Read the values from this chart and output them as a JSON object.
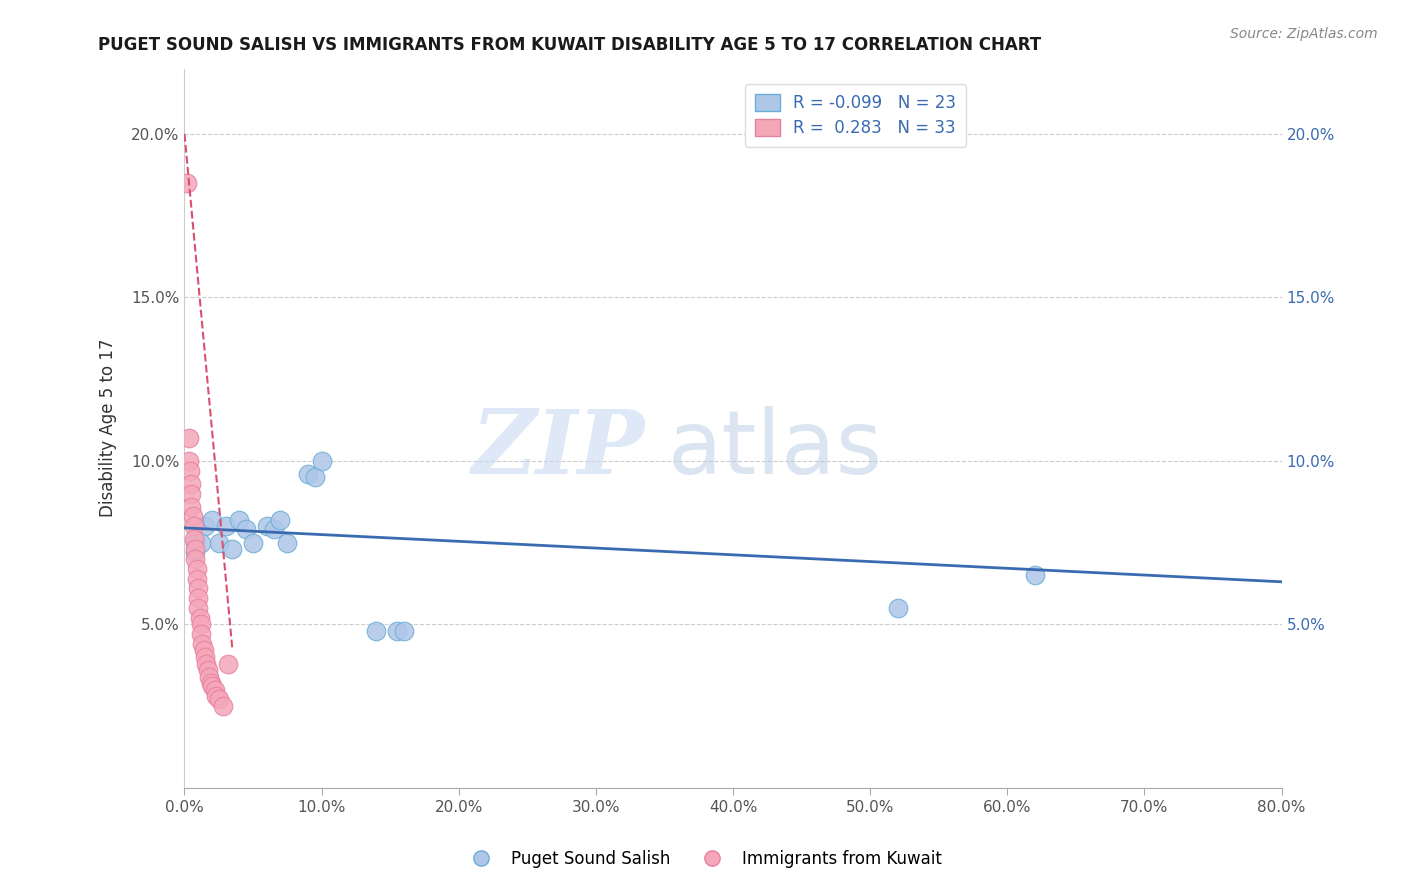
{
  "title": "PUGET SOUND SALISH VS IMMIGRANTS FROM KUWAIT DISABILITY AGE 5 TO 17 CORRELATION CHART",
  "source": "Source: ZipAtlas.com",
  "ylabel": "Disability Age 5 to 17",
  "xlim": [
    0.0,
    0.8
  ],
  "ylim": [
    0.0,
    0.22
  ],
  "xticks": [
    0.0,
    0.1,
    0.2,
    0.3,
    0.4,
    0.5,
    0.6,
    0.7,
    0.8
  ],
  "xticklabels": [
    "0.0%",
    "10.0%",
    "20.0%",
    "30.0%",
    "40.0%",
    "50.0%",
    "60.0%",
    "70.0%",
    "80.0%"
  ],
  "yticks_left": [
    0.0,
    0.05,
    0.1,
    0.15,
    0.2
  ],
  "yticklabels_left": [
    "",
    "5.0%",
    "10.0%",
    "15.0%",
    "20.0%"
  ],
  "yticks_right": [
    0.05,
    0.1,
    0.15,
    0.2
  ],
  "yticklabels_right": [
    "5.0%",
    "10.0%",
    "15.0%",
    "20.0%"
  ],
  "blue_r": -0.099,
  "blue_n": 23,
  "pink_r": 0.283,
  "pink_n": 33,
  "blue_color": "#aec6e8",
  "pink_color": "#f4a7b9",
  "blue_edge": "#6aaed6",
  "pink_edge": "#e87fa0",
  "line_blue": "#3a6bb0",
  "line_pink": "#d94f6e",
  "watermark_zip": "ZIP",
  "watermark_atlas": "atlas",
  "legend_label_blue": "Puget Sound Salish",
  "legend_label_pink": "Immigrants from Kuwait",
  "blue_x": [
    0.008,
    0.015,
    0.02,
    0.025,
    0.03,
    0.035,
    0.04,
    0.045,
    0.05,
    0.06,
    0.065,
    0.07,
    0.075,
    0.09,
    0.095,
    0.1,
    0.14,
    0.155,
    0.16,
    0.52,
    0.62,
    0.008,
    0.012
  ],
  "blue_y": [
    0.075,
    0.08,
    0.082,
    0.075,
    0.08,
    0.073,
    0.082,
    0.079,
    0.075,
    0.08,
    0.079,
    0.082,
    0.075,
    0.096,
    0.095,
    0.1,
    0.048,
    0.048,
    0.048,
    0.055,
    0.065,
    0.072,
    0.075
  ],
  "pink_x": [
    0.002,
    0.003,
    0.003,
    0.004,
    0.005,
    0.005,
    0.005,
    0.006,
    0.007,
    0.007,
    0.008,
    0.008,
    0.009,
    0.009,
    0.01,
    0.01,
    0.01,
    0.011,
    0.012,
    0.012,
    0.013,
    0.014,
    0.015,
    0.016,
    0.017,
    0.018,
    0.019,
    0.02,
    0.022,
    0.023,
    0.025,
    0.028,
    0.032
  ],
  "pink_y": [
    0.185,
    0.107,
    0.1,
    0.097,
    0.093,
    0.09,
    0.086,
    0.083,
    0.08,
    0.076,
    0.073,
    0.07,
    0.067,
    0.064,
    0.061,
    0.058,
    0.055,
    0.052,
    0.05,
    0.047,
    0.044,
    0.042,
    0.04,
    0.038,
    0.036,
    0.034,
    0.032,
    0.031,
    0.03,
    0.028,
    0.027,
    0.025,
    0.038
  ],
  "blue_line_x": [
    0.0,
    0.8
  ],
  "blue_line_y": [
    0.0795,
    0.063
  ],
  "pink_line_x": [
    0.0,
    0.035
  ],
  "pink_line_y": [
    0.2,
    0.042
  ]
}
